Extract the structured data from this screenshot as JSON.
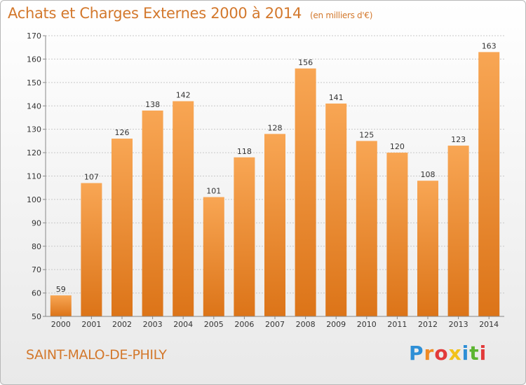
{
  "header": {
    "title": "Achats et Charges Externes 2000 à 2014",
    "unit": "(en milliers d'€)"
  },
  "footer": {
    "commune": "SAINT-MALO-DE-PHILY",
    "logo": "Proxiti"
  },
  "colors": {
    "bar_top": "#f8a654",
    "bar_bottom": "#dc7418",
    "title": "#d3782c",
    "grid": "#c8c8c8"
  },
  "chart_data": {
    "type": "bar",
    "categories": [
      "2000",
      "2001",
      "2002",
      "2003",
      "2004",
      "2005",
      "2006",
      "2007",
      "2008",
      "2009",
      "2010",
      "2011",
      "2012",
      "2013",
      "2014"
    ],
    "values": [
      59,
      107,
      126,
      138,
      142,
      101,
      118,
      128,
      156,
      141,
      125,
      120,
      108,
      123,
      163
    ],
    "title": "Achats et Charges Externes 2000 à 2014",
    "subtitle": "(en milliers d'€)",
    "xlabel": "",
    "ylabel": "",
    "ylim": [
      50,
      170
    ],
    "yticks": [
      50,
      60,
      70,
      80,
      90,
      100,
      110,
      120,
      130,
      140,
      150,
      160,
      170
    ],
    "grid": true,
    "data_labels": true
  }
}
